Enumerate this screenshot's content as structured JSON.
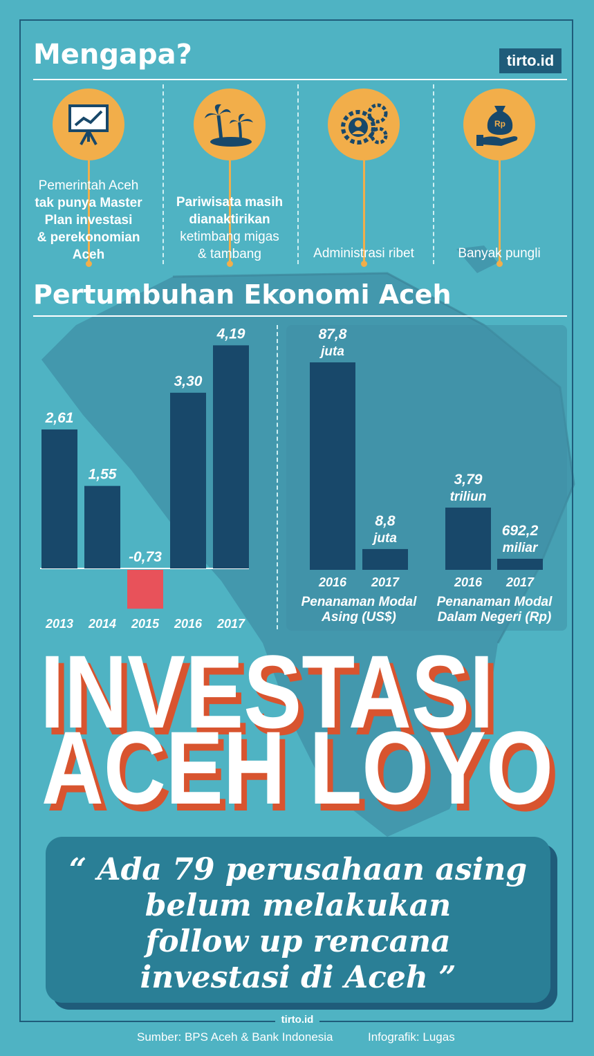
{
  "header": {
    "title": "Mengapa?",
    "logo": "tirto.id"
  },
  "reasons": [
    {
      "icon": "chart-presentation-icon",
      "lines": [
        {
          "text": "Pemerintah Aceh",
          "bold": false
        },
        {
          "text": "tak punya Master",
          "bold": true
        },
        {
          "text": "Plan investasi",
          "bold": true
        },
        {
          "text": "& perekonomian",
          "bold": true
        },
        {
          "text": "Aceh",
          "bold": true
        }
      ]
    },
    {
      "icon": "palm-tree-island-icon",
      "lines": [
        {
          "text": "Pariwisata masih",
          "bold": true
        },
        {
          "text": "dianaktirikan",
          "bold": true
        },
        {
          "text": "ketimbang migas",
          "bold": false
        },
        {
          "text": "& tambang",
          "bold": false
        }
      ]
    },
    {
      "icon": "gears-person-icon",
      "lines": [
        {
          "text": "Administrasi ribet",
          "bold": false
        }
      ]
    },
    {
      "icon": "money-bag-hand-icon",
      "lines": [
        {
          "text": "Banyak pungli",
          "bold": false
        }
      ]
    }
  ],
  "section2": {
    "title": "Pertumbuhan Ekonomi Aceh"
  },
  "chart_data": [
    {
      "type": "bar",
      "categories": [
        "2013",
        "2014",
        "2015",
        "2016",
        "2017"
      ],
      "values": [
        2.61,
        1.55,
        -0.73,
        3.3,
        4.19
      ],
      "labels": [
        "2,61",
        "1,55",
        "-0,73",
        "3,30",
        "4,19"
      ],
      "colors": {
        "positive": "#18486a",
        "negative": "#e8525a"
      }
    },
    {
      "type": "bar",
      "categories": [
        "2016",
        "2017"
      ],
      "values": [
        87.8,
        8.8
      ],
      "labels": [
        "87,8",
        "8,8"
      ],
      "units": [
        "juta",
        "juta"
      ],
      "xlabel": [
        "Penanaman Modal",
        "Asing (US$)"
      ],
      "color": "#18486a"
    },
    {
      "type": "bar",
      "categories": [
        "2016",
        "2017"
      ],
      "values": [
        3790,
        692.2
      ],
      "labels": [
        "3,79",
        "692,2"
      ],
      "units": [
        "triliun",
        "miliar"
      ],
      "xlabel": [
        "Penanaman Modal",
        "Dalam Negeri (Rp)"
      ],
      "color": "#18486a"
    }
  ],
  "headline": {
    "line1": "INVESTASI",
    "line2": "ACEH LOYO"
  },
  "quote": {
    "open": "“",
    "lines": [
      "Ada 79 perusahaan asing",
      "belum melakukan",
      "follow up rencana",
      "investasi di Aceh"
    ],
    "close": "”"
  },
  "footer": {
    "logo": "tirto.id",
    "source": "Sumber: BPS Aceh & Bank Indonesia",
    "credit": "Infografik: Lugas"
  },
  "colors": {
    "background": "#4fb3c3",
    "dark": "#18486a",
    "orange": "#f2ae4a",
    "red": "#e8525a",
    "headline_shadow": "#d8542f"
  }
}
